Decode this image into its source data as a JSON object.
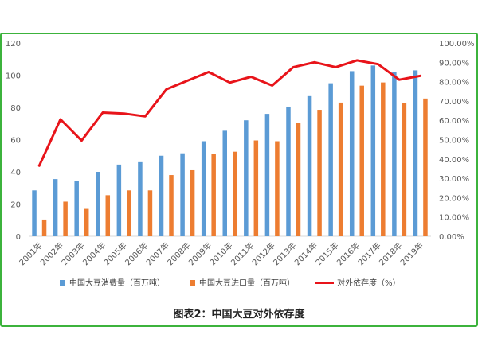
{
  "caption": "图表2：中国大豆对外依存度",
  "chart_data": {
    "type": "bar",
    "categories": [
      "2001年",
      "2002年",
      "2003年",
      "2004年",
      "2005年",
      "2006年",
      "2007年",
      "2008年",
      "2009年",
      "2010年",
      "2011年",
      "2012年",
      "2013年",
      "2014年",
      "2015年",
      "2016年",
      "2017年",
      "2018年",
      "2019年"
    ],
    "series": [
      {
        "name": "中国大豆消费量（百万吨）",
        "type": "bar",
        "axis": "left",
        "color": "#5b9bd5",
        "values": [
          28.5,
          35.5,
          34.5,
          40,
          44.5,
          46,
          50,
          51.5,
          59,
          65.5,
          72,
          76,
          80.5,
          87,
          95,
          102.5,
          106,
          102,
          103
        ]
      },
      {
        "name": "中国大豆进口量（百万吨）",
        "type": "bar",
        "axis": "left",
        "color": "#ed7d31",
        "values": [
          10.4,
          21.5,
          17,
          25.5,
          28.5,
          28.5,
          38,
          41,
          51,
          52.5,
          59.5,
          59,
          70.5,
          78.5,
          83,
          93.5,
          95.5,
          82.5,
          85.5
        ]
      },
      {
        "name": "对外依存度（%）",
        "type": "line",
        "axis": "right",
        "color": "#e8141a",
        "values": [
          36.5,
          60.5,
          49.5,
          64,
          63.5,
          62,
          76,
          80.5,
          85,
          79.5,
          82.5,
          78,
          87.5,
          90,
          87.5,
          91,
          89,
          81,
          83
        ]
      }
    ],
    "y_left": {
      "range": [
        0,
        120
      ],
      "ticks": [
        "0",
        "20",
        "40",
        "60",
        "80",
        "100",
        "120"
      ]
    },
    "y_right": {
      "range": [
        0,
        100
      ],
      "ticks": [
        "0.00%",
        "10.00%",
        "20.00%",
        "30.00%",
        "40.00%",
        "50.00%",
        "60.00%",
        "70.00%",
        "80.00%",
        "90.00%",
        "100.00%"
      ]
    },
    "grid": false,
    "legend_position": "bottom"
  }
}
